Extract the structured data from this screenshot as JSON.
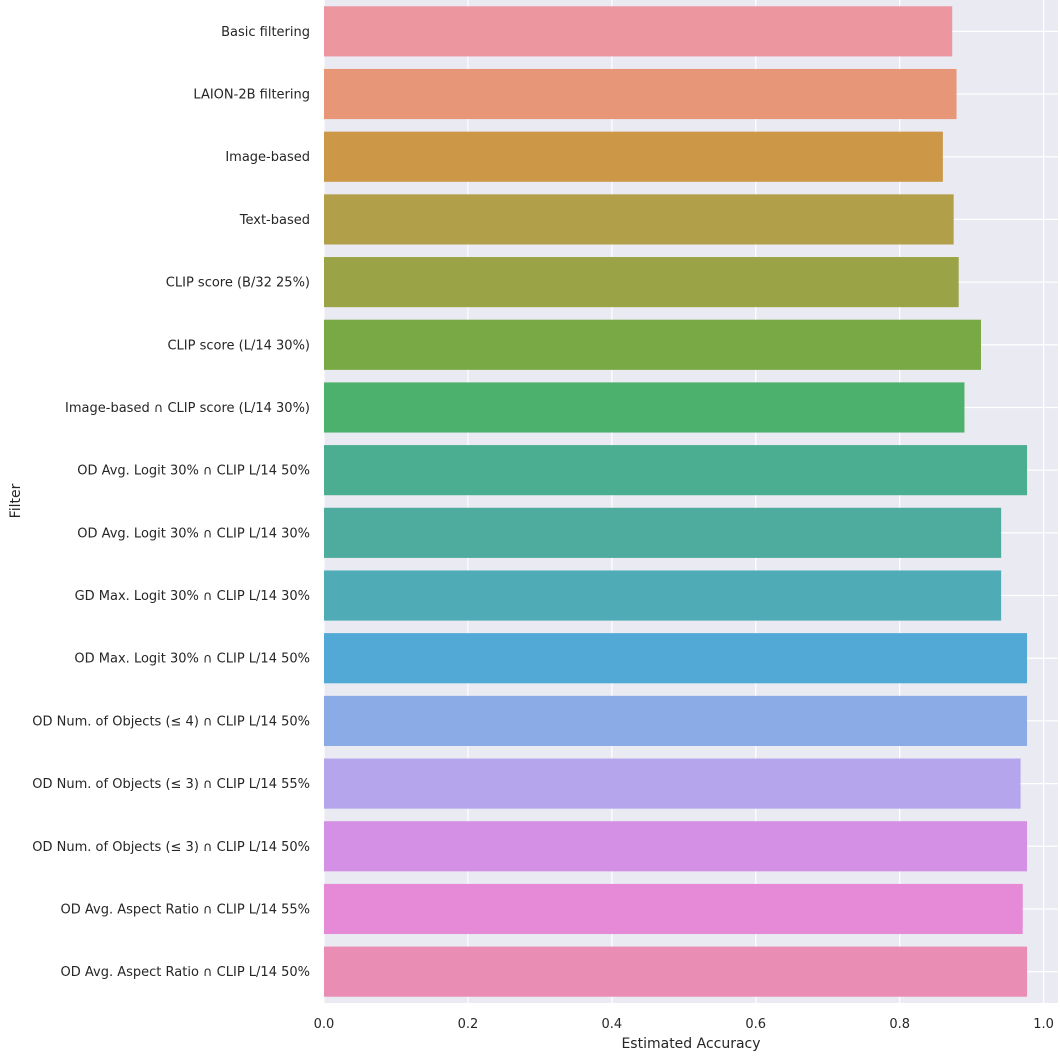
{
  "chart_data": {
    "type": "bar",
    "orientation": "horizontal",
    "xlabel": "Estimated Accuracy",
    "ylabel": "Filter",
    "xlim": [
      0.0,
      1.02
    ],
    "xticks": [
      0.0,
      0.2,
      0.4,
      0.6,
      0.8,
      1.0
    ],
    "xtick_labels": [
      "0.0",
      "0.2",
      "0.4",
      "0.6",
      "0.8",
      "1.0"
    ],
    "grid": true,
    "background_color": "#eaeaf2",
    "categories": [
      "Basic filtering",
      "LAION-2B filtering",
      "Image-based",
      "Text-based",
      "CLIP score (B/32 25%)",
      "CLIP score (L/14 30%)",
      "Image-based ∩ CLIP score (L/14 30%)",
      "OD Avg. Logit 30% ∩ CLIP L/14 50%",
      "OD Avg. Logit 30% ∩ CLIP L/14 30%",
      "GD Max. Logit 30% ∩ CLIP L/14 30%",
      "OD Max. Logit 30% ∩ CLIP L/14 50%",
      "OD Num. of Objects (≤ 4) ∩ CLIP L/14 50%",
      "OD Num. of Objects (≤ 3) ∩ CLIP L/14 55%",
      "OD Num. of Objects (≤ 3) ∩ CLIP L/14 50%",
      "OD Avg. Aspect Ratio ∩ CLIP L/14 55%",
      "OD Avg. Aspect Ratio ∩ CLIP L/14 50%"
    ],
    "values": [
      0.873,
      0.879,
      0.86,
      0.875,
      0.882,
      0.913,
      0.89,
      0.977,
      0.941,
      0.941,
      0.977,
      0.977,
      0.968,
      0.977,
      0.971,
      0.977
    ],
    "colors": [
      "#ec96a0",
      "#e79677",
      "#cc9847",
      "#b1a049",
      "#9aa446",
      "#78a944",
      "#4bb16c",
      "#4cae90",
      "#4dac9e",
      "#4fabb6",
      "#52a9d5",
      "#8aabe5",
      "#b5a5ec",
      "#d390e5",
      "#e68ad7",
      "#e98db5"
    ]
  }
}
